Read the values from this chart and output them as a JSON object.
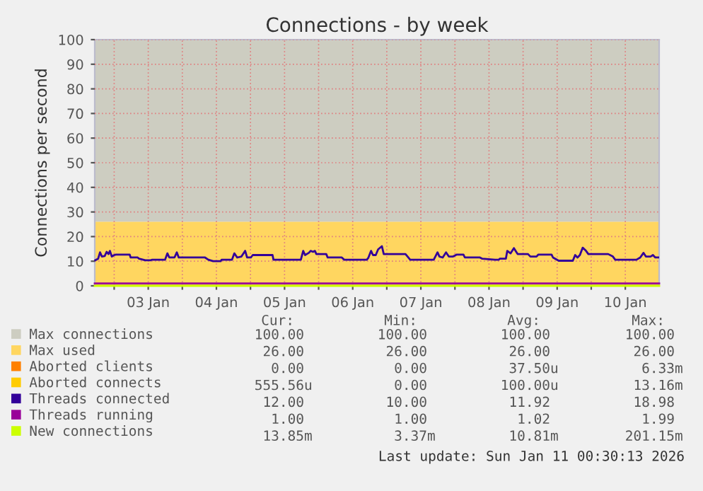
{
  "chart_data": {
    "type": "line",
    "title": "Connections - by week",
    "ylabel": "Connections per second",
    "xlim": [
      "2026-01-02T17:10",
      "2026-01-10T23:55"
    ],
    "xticks": [
      {
        "value": "2026-01-03T00:00",
        "label": null
      },
      {
        "value": "2026-01-03T12:00",
        "label": "03 Jan"
      },
      {
        "value": "2026-01-04T00:00",
        "label": null
      },
      {
        "value": "2026-01-04T12:00",
        "label": "04 Jan"
      },
      {
        "value": "2026-01-05T00:00",
        "label": null
      },
      {
        "value": "2026-01-05T12:00",
        "label": "05 Jan"
      },
      {
        "value": "2026-01-06T00:00",
        "label": null
      },
      {
        "value": "2026-01-06T12:00",
        "label": "06 Jan"
      },
      {
        "value": "2026-01-07T00:00",
        "label": null
      },
      {
        "value": "2026-01-07T12:00",
        "label": "07 Jan"
      },
      {
        "value": "2026-01-08T00:00",
        "label": null
      },
      {
        "value": "2026-01-08T12:00",
        "label": "08 Jan"
      },
      {
        "value": "2026-01-09T00:00",
        "label": null
      },
      {
        "value": "2026-01-09T12:00",
        "label": "09 Jan"
      },
      {
        "value": "2026-01-10T00:00",
        "label": null
      },
      {
        "value": "2026-01-10T12:00",
        "label": "10 Jan"
      }
    ],
    "ylim": [
      0,
      100
    ],
    "yticks": [
      0,
      10,
      20,
      30,
      40,
      50,
      60,
      70,
      80,
      90,
      100
    ],
    "grid": true,
    "legend": "bottom",
    "series": [
      {
        "name": "Max connections",
        "type": "area",
        "color": "#cdcdc1",
        "x": [
          "2026-01-02T17:10",
          "2026-01-10T23:55"
        ],
        "values": [
          100,
          100
        ]
      },
      {
        "name": "Max used",
        "type": "area",
        "color": "#ffd660",
        "x": [
          "2026-01-02T17:10",
          "2026-01-10T23:55"
        ],
        "values": [
          26,
          26
        ]
      },
      {
        "name": "Aborted clients",
        "color": "#ff8000"
      },
      {
        "name": "Aborted connects",
        "color": "#ffcc00"
      },
      {
        "name": "Threads connected",
        "color": "#330099",
        "x": [
          "2026-01-02T17:21",
          "2026-01-02T18:21",
          "2026-01-02T19:01",
          "2026-01-02T19:41",
          "2026-01-02T20:40",
          "2026-01-02T21:20",
          "2026-01-02T22:00",
          "2026-01-02T22:30",
          "2026-01-02T23:10",
          "2026-01-03T00:00",
          "2026-01-03T00:40",
          "2026-01-03T05:28",
          "2026-01-03T05:48",
          "2026-01-03T08:17",
          "2026-01-03T08:47",
          "2026-01-03T10:57",
          "2026-01-03T12:56",
          "2026-01-03T13:16",
          "2026-01-03T17:55",
          "2026-01-03T18:45",
          "2026-01-03T19:25",
          "2026-01-03T21:14",
          "2026-01-03T22:04",
          "2026-01-03T22:44",
          "2026-01-04T08:00",
          "2026-01-04T09:10",
          "2026-01-04T10:51",
          "2026-01-04T13:30",
          "2026-01-04T13:50",
          "2026-01-04T17:29",
          "2026-01-04T18:19",
          "2026-01-04T19:19",
          "2026-01-04T20:49",
          "2026-01-04T22:08",
          "2026-01-04T22:48",
          "2026-01-05T00:08",
          "2026-01-05T00:48",
          "2026-01-05T07:46",
          "2026-01-05T08:06",
          "2026-01-05T17:44",
          "2026-01-05T18:34",
          "2026-01-05T19:13",
          "2026-01-05T20:33",
          "2026-01-05T21:13",
          "2026-01-05T22:02",
          "2026-01-05T22:42",
          "2026-01-05T23:12",
          "2026-01-06T02:41",
          "2026-01-06T03:11",
          "2026-01-06T08:10",
          "2026-01-06T09:00",
          "2026-01-06T16:58",
          "2026-01-06T17:28",
          "2026-01-06T18:28",
          "2026-01-06T19:08",
          "2026-01-06T20:07",
          "2026-01-06T20:57",
          "2026-01-06T22:17",
          "2026-01-06T22:56",
          "2026-01-07T06:35",
          "2026-01-07T07:35",
          "2026-01-07T08:14",
          "2026-01-07T16:32",
          "2026-01-07T17:52",
          "2026-01-07T18:32",
          "2026-01-07T19:41",
          "2026-01-07T20:52",
          "2026-01-07T21:51",
          "2026-01-07T23:21",
          "2026-01-08T00:40",
          "2026-01-08T03:00",
          "2026-01-08T03:30",
          "2026-01-08T08:49",
          "2026-01-08T09:38",
          "2026-01-08T14:07",
          "2026-01-08T15:27",
          "2026-01-08T15:47",
          "2026-01-08T17:56",
          "2026-01-08T18:26",
          "2026-01-08T19:36",
          "2026-01-08T20:46",
          "2026-01-08T21:35",
          "2026-01-08T22:05",
          "2026-01-09T01:44",
          "2026-01-09T02:34",
          "2026-01-09T04:44",
          "2026-01-09T05:23",
          "2026-01-09T10:02",
          "2026-01-09T10:32",
          "2026-01-09T12:32",
          "2026-01-09T17:31",
          "2026-01-09T18:20",
          "2026-01-09T19:10",
          "2026-01-09T20:00",
          "2026-01-09T21:00",
          "2026-01-09T22:10",
          "2026-01-09T22:59",
          "2026-01-10T05:58",
          "2026-01-10T07:37",
          "2026-01-10T08:27",
          "2026-01-10T10:56",
          "2026-01-10T15:55",
          "2026-01-10T17:15",
          "2026-01-10T18:25",
          "2026-01-10T19:14",
          "2026-01-10T20:54",
          "2026-01-10T21:44",
          "2026-01-10T22:34",
          "2026-01-10T23:34"
        ],
        "values": [
          10.4,
          11.0,
          13.6,
          11.9,
          12.1,
          13.8,
          12.9,
          14.2,
          11.9,
          12.5,
          12.7,
          12.7,
          11.5,
          11.5,
          11.0,
          10.4,
          10.4,
          10.6,
          10.6,
          13.2,
          11.5,
          11.5,
          13.6,
          11.5,
          11.5,
          10.6,
          10.0,
          10.0,
          10.6,
          10.6,
          13.2,
          11.5,
          11.9,
          14.2,
          11.5,
          11.5,
          12.5,
          12.5,
          10.6,
          10.6,
          14.2,
          12.5,
          13.4,
          14.2,
          13.8,
          14.2,
          12.9,
          12.9,
          11.5,
          11.5,
          10.6,
          10.6,
          11.3,
          14.2,
          12.5,
          12.5,
          14.8,
          16.1,
          12.9,
          12.9,
          11.5,
          10.6,
          10.6,
          13.6,
          11.9,
          11.5,
          13.6,
          11.9,
          11.9,
          12.7,
          12.7,
          11.5,
          11.5,
          11.0,
          10.6,
          10.6,
          11.0,
          11.0,
          14.2,
          13.2,
          15.3,
          13.8,
          12.9,
          12.9,
          11.9,
          11.9,
          12.7,
          12.7,
          11.5,
          10.2,
          10.2,
          12.5,
          11.5,
          12.5,
          15.5,
          14.2,
          12.9,
          12.9,
          11.9,
          10.6,
          10.6,
          10.6,
          11.5,
          13.4,
          11.9,
          11.9,
          12.5,
          11.5,
          11.5
        ]
      },
      {
        "name": "Threads running",
        "color": "#990099",
        "x": [
          "2026-01-02T17:10",
          "2026-01-10T23:55"
        ],
        "values": [
          1,
          1
        ]
      },
      {
        "name": "New connections",
        "color": "#ccff00",
        "x": [
          "2026-01-02T17:10",
          "2026-01-10T23:55"
        ],
        "values": [
          0,
          0
        ]
      }
    ],
    "annotations": [
      "Cur:",
      "Min:",
      "Avg:",
      "Max:",
      "100.00",
      "100.00",
      "100.00",
      "100.00",
      "26.00",
      "26.00",
      "26.00",
      "26.00",
      "0.00",
      "0.00",
      "37.50u",
      "6.33m",
      "555.56u",
      "0.00",
      "100.00u",
      "13.16m",
      "12.00",
      "10.00",
      "11.92",
      "18.98",
      "1.00",
      "1.00",
      "1.02",
      "1.99",
      "13.85m",
      "3.37m",
      "10.81m",
      "201.15m",
      "Last update: Sun Jan 11 00:30:13 2026"
    ]
  }
}
